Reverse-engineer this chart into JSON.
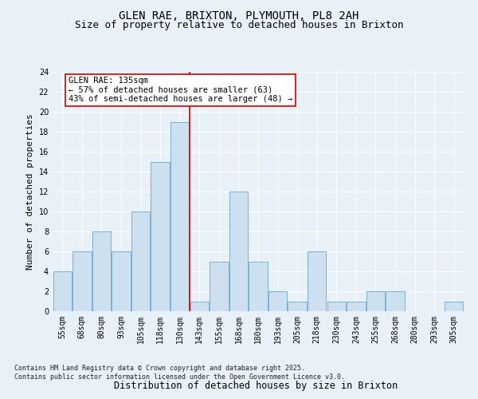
{
  "title": "GLEN RAE, BRIXTON, PLYMOUTH, PL8 2AH",
  "subtitle": "Size of property relative to detached houses in Brixton",
  "xlabel": "Distribution of detached houses by size in Brixton",
  "ylabel": "Number of detached properties",
  "categories": [
    "55sqm",
    "68sqm",
    "80sqm",
    "93sqm",
    "105sqm",
    "118sqm",
    "130sqm",
    "143sqm",
    "155sqm",
    "168sqm",
    "180sqm",
    "193sqm",
    "205sqm",
    "218sqm",
    "230sqm",
    "243sqm",
    "255sqm",
    "268sqm",
    "280sqm",
    "293sqm",
    "305sqm"
  ],
  "values": [
    4,
    6,
    8,
    6,
    10,
    15,
    19,
    1,
    5,
    12,
    5,
    2,
    1,
    6,
    1,
    1,
    2,
    2,
    0,
    0,
    1
  ],
  "bar_color": "#cce0f0",
  "bar_edge_color": "#7ab0d4",
  "vline_x_index": 6,
  "vline_color": "#cc0000",
  "annotation_text": "GLEN RAE: 135sqm\n← 57% of detached houses are smaller (63)\n43% of semi-detached houses are larger (48) →",
  "annotation_box_color": "#ffffff",
  "annotation_box_edge": "#cc0000",
  "ylim": [
    0,
    24
  ],
  "yticks": [
    0,
    2,
    4,
    6,
    8,
    10,
    12,
    14,
    16,
    18,
    20,
    22,
    24
  ],
  "bg_color": "#e8f0f8",
  "plot_bg_color": "#e8f0f8",
  "footer": "Contains HM Land Registry data © Crown copyright and database right 2025.\nContains public sector information licensed under the Open Government Licence v3.0.",
  "title_fontsize": 10,
  "subtitle_fontsize": 9,
  "xlabel_fontsize": 8.5,
  "ylabel_fontsize": 8,
  "tick_fontsize": 7,
  "annotation_fontsize": 7.5
}
